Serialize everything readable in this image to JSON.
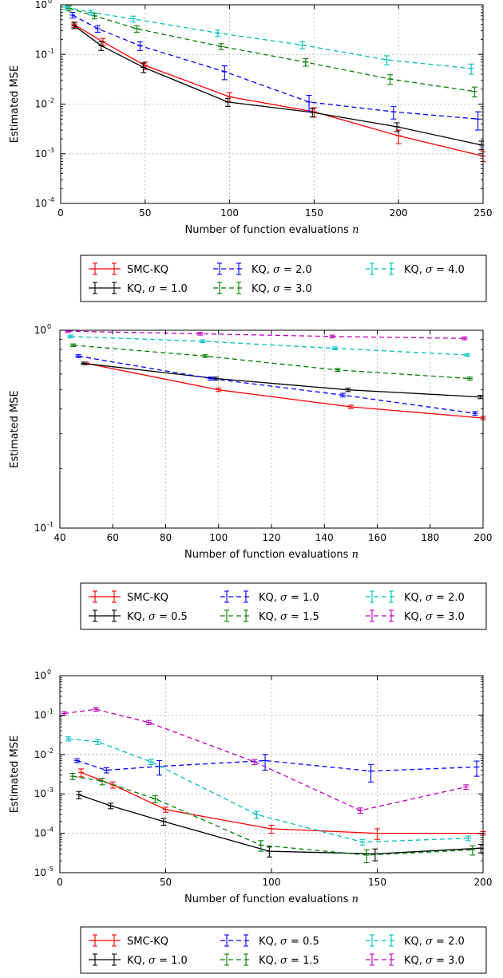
{
  "chart_data": [
    {
      "type": "line",
      "yscale": "log",
      "xlabel": "Number of function evaluations n",
      "ylabel": "Estimated MSE",
      "xlim": [
        0,
        250
      ],
      "ylim": [
        0.0001,
        1
      ],
      "xticks": [
        0,
        50,
        100,
        150,
        200,
        250
      ],
      "xtick_labels": [
        "0",
        "50",
        "100",
        "150",
        "200",
        "250"
      ],
      "yticks": [
        0.0001,
        0.001,
        0.01,
        0.1,
        1
      ],
      "ytick_labels": [
        [
          "10",
          "-4"
        ],
        [
          "10",
          "-3"
        ],
        [
          "10",
          "-2"
        ],
        [
          "10",
          "-1"
        ],
        [
          "10",
          "0"
        ]
      ],
      "grid": true,
      "legend": "below",
      "series": [
        {
          "name": "SMC-KQ",
          "color": "#ff0000",
          "dash": false,
          "x": [
            8,
            25,
            50,
            100,
            150,
            200,
            250
          ],
          "y": [
            0.4,
            0.18,
            0.06,
            0.014,
            0.007,
            0.0023,
            0.0009
          ],
          "err": [
            0.05,
            0.03,
            0.01,
            0.003,
            0.0015,
            0.0007,
            0.0002
          ]
        },
        {
          "name": "KQ, σ = 1.0",
          "color": "#000000",
          "dash": false,
          "x": [
            8,
            24,
            49,
            99,
            149,
            199,
            249
          ],
          "y": [
            0.38,
            0.15,
            0.055,
            0.011,
            0.0068,
            0.0035,
            0.0015
          ],
          "err": [
            0.05,
            0.03,
            0.012,
            0.002,
            0.0013,
            0.0007,
            0.0003
          ]
        },
        {
          "name": "KQ, σ = 2.0",
          "color": "#0000ff",
          "dash": true,
          "x": [
            7,
            22,
            47,
            97,
            147,
            197,
            247
          ],
          "y": [
            0.62,
            0.33,
            0.15,
            0.045,
            0.011,
            0.007,
            0.005
          ],
          "err": [
            0.08,
            0.05,
            0.03,
            0.014,
            0.004,
            0.002,
            0.002
          ]
        },
        {
          "name": "KQ, σ = 3.0",
          "color": "#008000",
          "dash": true,
          "x": [
            5,
            20,
            45,
            95,
            145,
            195,
            245
          ],
          "y": [
            0.85,
            0.6,
            0.33,
            0.145,
            0.07,
            0.032,
            0.018
          ],
          "err": [
            0.1,
            0.08,
            0.05,
            0.02,
            0.012,
            0.007,
            0.004
          ]
        },
        {
          "name": "KQ, σ = 4.0",
          "color": "#00bfbf",
          "dash": true,
          "x": [
            3,
            18,
            43,
            93,
            143,
            193,
            243
          ],
          "y": [
            0.9,
            0.7,
            0.52,
            0.27,
            0.155,
            0.078,
            0.052
          ],
          "err": [
            0.1,
            0.08,
            0.07,
            0.04,
            0.025,
            0.016,
            0.012
          ]
        }
      ],
      "legend_entries": [
        {
          "label": "SMC-KQ",
          "symbol": "",
          "suffix": "",
          "color": "#ff0000",
          "dash": false
        },
        {
          "label": "KQ, ",
          "symbol": "σ",
          "suffix": " = 2.0",
          "color": "#0000ff",
          "dash": true
        },
        {
          "label": "KQ, ",
          "symbol": "σ",
          "suffix": " = 4.0",
          "color": "#00bfbf",
          "dash": true
        },
        {
          "label": "KQ, ",
          "symbol": "σ",
          "suffix": " = 1.0",
          "color": "#000000",
          "dash": false
        },
        {
          "label": "KQ, ",
          "symbol": "σ",
          "suffix": " = 3.0",
          "color": "#008000",
          "dash": true
        }
      ]
    },
    {
      "type": "line",
      "yscale": "log",
      "xlabel": "Number of function evaluations n",
      "ylabel": "Estimated MSE",
      "xlim": [
        40,
        200
      ],
      "ylim": [
        0.1,
        1
      ],
      "xticks": [
        40,
        60,
        80,
        100,
        120,
        140,
        160,
        180,
        200
      ],
      "xtick_labels": [
        "40",
        "60",
        "80",
        "100",
        "120",
        "140",
        "160",
        "180",
        "200"
      ],
      "yticks": [
        0.1,
        1
      ],
      "ytick_labels": [
        [
          "10",
          "-1"
        ],
        [
          "10",
          "0"
        ]
      ],
      "grid": true,
      "legend": "below",
      "series": [
        {
          "name": "SMC-KQ",
          "color": "#ff0000",
          "dash": false,
          "x": [
            50,
            100,
            150,
            200
          ],
          "y": [
            0.68,
            0.5,
            0.41,
            0.36
          ],
          "err": [
            0.01,
            0.01,
            0.008,
            0.007
          ]
        },
        {
          "name": "KQ, σ = 0.5",
          "color": "#000000",
          "dash": false,
          "x": [
            49,
            99,
            149,
            199
          ],
          "y": [
            0.68,
            0.57,
            0.5,
            0.46
          ],
          "err": [
            0.01,
            0.01,
            0.01,
            0.009
          ]
        },
        {
          "name": "KQ, σ = 1.0",
          "color": "#0000ff",
          "dash": true,
          "x": [
            47,
            97,
            147,
            197
          ],
          "y": [
            0.74,
            0.57,
            0.47,
            0.38
          ],
          "err": [
            0.012,
            0.01,
            0.01,
            0.008
          ]
        },
        {
          "name": "KQ, σ = 1.5",
          "color": "#008000",
          "dash": true,
          "x": [
            45,
            95,
            145,
            195
          ],
          "y": [
            0.84,
            0.74,
            0.63,
            0.57
          ],
          "err": [
            0.013,
            0.012,
            0.011,
            0.01
          ]
        },
        {
          "name": "KQ, σ = 2.0",
          "color": "#00bfbf",
          "dash": true,
          "x": [
            44,
            94,
            144,
            194
          ],
          "y": [
            0.93,
            0.88,
            0.81,
            0.75
          ],
          "err": [
            0.015,
            0.014,
            0.013,
            0.012
          ]
        },
        {
          "name": "KQ, σ = 3.0",
          "color": "#bf00bf",
          "dash": true,
          "x": [
            43,
            93,
            143,
            193
          ],
          "y": [
            0.99,
            0.96,
            0.93,
            0.91
          ],
          "err": [
            0.015,
            0.015,
            0.015,
            0.015
          ]
        }
      ],
      "legend_entries": [
        {
          "label": "SMC-KQ",
          "symbol": "",
          "suffix": "",
          "color": "#ff0000",
          "dash": false
        },
        {
          "label": "KQ, ",
          "symbol": "σ",
          "suffix": " = 1.0",
          "color": "#0000ff",
          "dash": true
        },
        {
          "label": "KQ, ",
          "symbol": "σ",
          "suffix": " = 2.0",
          "color": "#00bfbf",
          "dash": true
        },
        {
          "label": "KQ, ",
          "symbol": "σ",
          "suffix": " = 0.5",
          "color": "#000000",
          "dash": false
        },
        {
          "label": "KQ, ",
          "symbol": "σ",
          "suffix": " = 1.5",
          "color": "#008000",
          "dash": true
        },
        {
          "label": "KQ, ",
          "symbol": "σ",
          "suffix": " = 3.0",
          "color": "#bf00bf",
          "dash": true
        }
      ]
    },
    {
      "type": "line",
      "yscale": "log",
      "xlabel": "Number of function evaluations n",
      "ylabel": "Estimated MSE",
      "xlim": [
        0,
        200
      ],
      "ylim": [
        1e-05,
        1
      ],
      "xticks": [
        0,
        50,
        100,
        150,
        200
      ],
      "xtick_labels": [
        "0",
        "50",
        "100",
        "150",
        "200"
      ],
      "yticks": [
        1e-05,
        0.0001,
        0.001,
        0.01,
        0.1,
        1
      ],
      "ytick_labels": [
        [
          "10",
          "-5"
        ],
        [
          "10",
          "-4"
        ],
        [
          "10",
          "-3"
        ],
        [
          "10",
          "-2"
        ],
        [
          "10",
          "-1"
        ],
        [
          "10",
          "0"
        ]
      ],
      "grid": true,
      "legend": "below",
      "series": [
        {
          "name": "SMC-KQ",
          "color": "#ff0000",
          "dash": false,
          "x": [
            10,
            25,
            50,
            100,
            150,
            200
          ],
          "y": [
            0.0035,
            0.0017,
            0.0004,
            0.00013,
            0.0001,
            0.0001
          ],
          "err": [
            0.0008,
            0.0003,
            6e-05,
            3e-05,
            3e-05,
            1e-05
          ]
        },
        {
          "name": "KQ, σ = 1.0",
          "color": "#000000",
          "dash": false,
          "x": [
            9,
            24,
            49,
            99,
            149,
            199
          ],
          "y": [
            0.00095,
            0.0005,
            0.0002,
            3.5e-05,
            3e-05,
            4.2e-05
          ],
          "err": [
            0.0002,
            8e-05,
            4e-05,
            1e-05,
            1e-05,
            1e-05
          ]
        },
        {
          "name": "KQ, σ = 0.5",
          "color": "#0000ff",
          "dash": true,
          "x": [
            8,
            22,
            47,
            97,
            147,
            197
          ],
          "y": [
            0.007,
            0.004,
            0.005,
            0.007,
            0.0038,
            0.0048
          ],
          "err": [
            0.0008,
            0.0006,
            0.002,
            0.003,
            0.0018,
            0.002
          ]
        },
        {
          "name": "KQ, σ = 1.5",
          "color": "#008000",
          "dash": true,
          "x": [
            6,
            20,
            45,
            95,
            145,
            195
          ],
          "y": [
            0.0028,
            0.0021,
            0.00075,
            5e-05,
            2.8e-05,
            3.8e-05
          ],
          "err": [
            0.0005,
            0.0004,
            0.00015,
            1.5e-05,
            1e-05,
            1e-05
          ]
        },
        {
          "name": "KQ, σ = 2.0",
          "color": "#00bfbf",
          "dash": true,
          "x": [
            4,
            18,
            43,
            93,
            143,
            193
          ],
          "y": [
            0.025,
            0.021,
            0.0065,
            0.0003,
            6e-05,
            7.5e-05
          ],
          "err": [
            0.003,
            0.003,
            0.001,
            6e-05,
            1e-05,
            1e-05
          ]
        },
        {
          "name": "KQ, σ = 3.0",
          "color": "#bf00bf",
          "dash": true,
          "x": [
            2,
            17,
            42,
            92,
            142,
            192
          ],
          "y": [
            0.11,
            0.14,
            0.065,
            0.0065,
            0.00038,
            0.0015
          ],
          "err": [
            0.012,
            0.015,
            0.008,
            0.001,
            6e-05,
            0.0002
          ]
        }
      ],
      "legend_entries": [
        {
          "label": "SMC-KQ",
          "symbol": "",
          "suffix": "",
          "color": "#ff0000",
          "dash": false
        },
        {
          "label": "KQ, ",
          "symbol": "σ",
          "suffix": " = 0.5",
          "color": "#0000ff",
          "dash": true
        },
        {
          "label": "KQ, ",
          "symbol": "σ",
          "suffix": " = 2.0",
          "color": "#00bfbf",
          "dash": true
        },
        {
          "label": "KQ, ",
          "symbol": "σ",
          "suffix": " = 1.0",
          "color": "#000000",
          "dash": false
        },
        {
          "label": "KQ, ",
          "symbol": "σ",
          "suffix": " = 1.5",
          "color": "#008000",
          "dash": true
        },
        {
          "label": "KQ, ",
          "symbol": "σ",
          "suffix": " = 3.0",
          "color": "#bf00bf",
          "dash": true
        }
      ]
    }
  ]
}
